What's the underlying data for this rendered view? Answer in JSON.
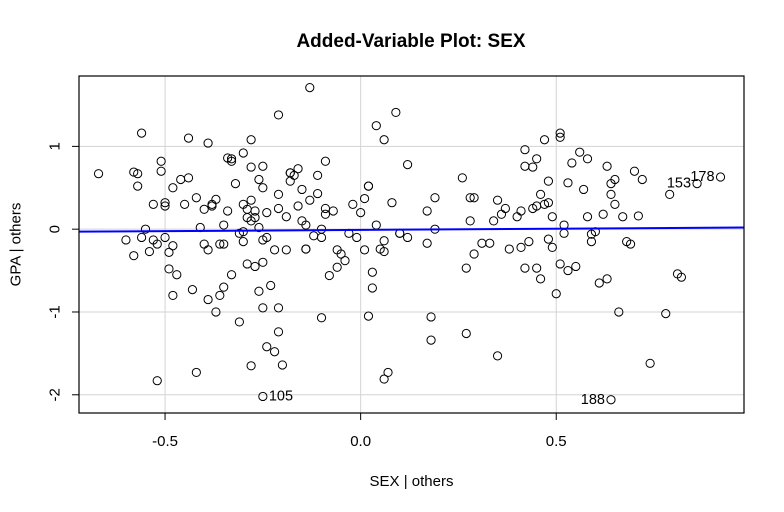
{
  "chart_data": {
    "type": "scatter",
    "title": "Added-Variable Plot: SEX",
    "xlabel": "SEX | others",
    "ylabel": "GPA | others",
    "xlim": [
      -0.72,
      0.98
    ],
    "ylim": [
      -2.22,
      1.85
    ],
    "x_ticks": [
      -0.5,
      0.0,
      0.5
    ],
    "x_tick_labels": [
      "-0.5",
      "0.0",
      "0.5"
    ],
    "y_ticks": [
      -2,
      -1,
      0,
      1
    ],
    "y_tick_labels": [
      "-2",
      "-1",
      "0",
      "1"
    ],
    "grid": true,
    "point_marker": "open-circle",
    "colors": {
      "points": "#000000",
      "fit_line": "#0000ff",
      "grid": "#d3d3d3",
      "frame": "#000000"
    },
    "fit_line": {
      "x": [
        -0.72,
        0.98
      ],
      "y": [
        -0.03,
        0.02
      ]
    },
    "labeled_points": [
      {
        "label": "178",
        "x": 0.92,
        "y": 0.63,
        "side": "left"
      },
      {
        "label": "153",
        "x": 0.86,
        "y": 0.55,
        "side": "left"
      },
      {
        "label": "105",
        "x": -0.25,
        "y": -2.02,
        "side": "right"
      },
      {
        "label": "188",
        "x": 0.64,
        "y": -2.06,
        "side": "left"
      }
    ],
    "points": [
      [
        -0.67,
        0.67
      ],
      [
        -0.6,
        -0.13
      ],
      [
        -0.58,
        0.69
      ],
      [
        -0.58,
        -0.32
      ],
      [
        -0.57,
        0.52
      ],
      [
        -0.57,
        0.67
      ],
      [
        -0.56,
        1.16
      ],
      [
        -0.56,
        -0.1
      ],
      [
        -0.55,
        0.0
      ],
      [
        -0.54,
        -0.27
      ],
      [
        -0.53,
        -0.13
      ],
      [
        -0.53,
        0.3
      ],
      [
        -0.52,
        -0.18
      ],
      [
        -0.52,
        -1.83
      ],
      [
        -0.51,
        0.82
      ],
      [
        -0.51,
        0.7
      ],
      [
        -0.5,
        0.32
      ],
      [
        -0.5,
        0.28
      ],
      [
        -0.5,
        -0.1
      ],
      [
        -0.49,
        -0.28
      ],
      [
        -0.49,
        -0.48
      ],
      [
        -0.48,
        -0.8
      ],
      [
        -0.48,
        0.5
      ],
      [
        -0.48,
        -0.2
      ],
      [
        -0.47,
        -0.55
      ],
      [
        -0.46,
        0.6
      ],
      [
        -0.45,
        0.3
      ],
      [
        -0.44,
        1.1
      ],
      [
        -0.44,
        0.62
      ],
      [
        -0.43,
        -0.73
      ],
      [
        -0.42,
        -1.73
      ],
      [
        -0.42,
        0.38
      ],
      [
        -0.41,
        0.02
      ],
      [
        -0.4,
        0.24
      ],
      [
        -0.4,
        -0.18
      ],
      [
        -0.39,
        -0.25
      ],
      [
        -0.39,
        -0.85
      ],
      [
        -0.39,
        1.04
      ],
      [
        -0.38,
        0.3
      ],
      [
        -0.38,
        0.28
      ],
      [
        -0.37,
        -1.0
      ],
      [
        -0.37,
        0.36
      ],
      [
        -0.36,
        -0.18
      ],
      [
        -0.36,
        -0.8
      ],
      [
        -0.35,
        0.05
      ],
      [
        -0.35,
        -0.18
      ],
      [
        -0.35,
        -0.7
      ],
      [
        -0.34,
        0.86
      ],
      [
        -0.34,
        0.22
      ],
      [
        -0.33,
        0.82
      ],
      [
        -0.33,
        0.85
      ],
      [
        -0.33,
        -0.55
      ],
      [
        -0.32,
        0.55
      ],
      [
        -0.31,
        -0.05
      ],
      [
        -0.31,
        -1.12
      ],
      [
        -0.3,
        -0.03
      ],
      [
        -0.3,
        0.92
      ],
      [
        -0.3,
        0.3
      ],
      [
        -0.3,
        -0.15
      ],
      [
        -0.29,
        0.14
      ],
      [
        -0.29,
        0.24
      ],
      [
        -0.29,
        -0.42
      ],
      [
        -0.28,
        -1.65
      ],
      [
        -0.28,
        0.1
      ],
      [
        -0.28,
        0.35
      ],
      [
        -0.28,
        0.75
      ],
      [
        -0.28,
        1.08
      ],
      [
        -0.27,
        -0.45
      ],
      [
        -0.27,
        0.14
      ],
      [
        -0.27,
        0.22
      ],
      [
        -0.26,
        0.02
      ],
      [
        -0.26,
        0.6
      ],
      [
        -0.26,
        -0.75
      ],
      [
        -0.25,
        -0.95
      ],
      [
        -0.25,
        0.5
      ],
      [
        -0.25,
        -0.13
      ],
      [
        -0.25,
        -0.4
      ],
      [
        -0.25,
        0.76
      ],
      [
        -0.24,
        -1.42
      ],
      [
        -0.24,
        -0.1
      ],
      [
        -0.24,
        0.2
      ],
      [
        -0.23,
        -0.68
      ],
      [
        -0.22,
        -1.48
      ],
      [
        -0.22,
        -0.25
      ],
      [
        -0.21,
        0.42
      ],
      [
        -0.21,
        -0.95
      ],
      [
        -0.21,
        -1.24
      ],
      [
        -0.21,
        1.38
      ],
      [
        -0.21,
        0.25
      ],
      [
        -0.2,
        -1.64
      ],
      [
        -0.19,
        -0.25
      ],
      [
        -0.19,
        0.15
      ],
      [
        -0.18,
        0.68
      ],
      [
        -0.18,
        0.58
      ],
      [
        -0.18,
        0.68
      ],
      [
        -0.17,
        0.65
      ],
      [
        -0.16,
        0.73
      ],
      [
        -0.16,
        0.28
      ],
      [
        -0.15,
        0.48
      ],
      [
        -0.15,
        0.1
      ],
      [
        -0.14,
        -0.24
      ],
      [
        -0.14,
        -0.24
      ],
      [
        -0.14,
        0.05
      ],
      [
        -0.13,
        0.35
      ],
      [
        -0.13,
        1.71
      ],
      [
        -0.12,
        -0.08
      ],
      [
        -0.11,
        0.65
      ],
      [
        -0.11,
        0.43
      ],
      [
        -0.1,
        -1.07
      ],
      [
        -0.1,
        0.0
      ],
      [
        -0.1,
        -0.1
      ],
      [
        -0.09,
        0.18
      ],
      [
        -0.09,
        0.25
      ],
      [
        -0.09,
        0.82
      ],
      [
        -0.08,
        -0.56
      ],
      [
        -0.07,
        0.22
      ],
      [
        -0.06,
        -0.25
      ],
      [
        -0.06,
        -0.46
      ],
      [
        -0.05,
        -0.3
      ],
      [
        -0.04,
        -0.38
      ],
      [
        -0.03,
        -0.05
      ],
      [
        -0.02,
        0.3
      ],
      [
        -0.01,
        -0.1
      ],
      [
        0.0,
        0.2
      ],
      [
        0.01,
        0.37
      ],
      [
        0.01,
        -0.25
      ],
      [
        0.02,
        -1.05
      ],
      [
        0.02,
        0.52
      ],
      [
        0.02,
        0.52
      ],
      [
        0.03,
        -0.52
      ],
      [
        0.03,
        -0.71
      ],
      [
        0.04,
        1.25
      ],
      [
        0.04,
        0.05
      ],
      [
        0.05,
        -0.24
      ],
      [
        0.06,
        -0.14
      ],
      [
        0.06,
        1.08
      ],
      [
        0.06,
        -0.27
      ],
      [
        0.06,
        -1.81
      ],
      [
        0.07,
        -1.73
      ],
      [
        0.08,
        0.32
      ],
      [
        0.09,
        1.41
      ],
      [
        0.1,
        -0.05
      ],
      [
        0.1,
        -0.05
      ],
      [
        0.12,
        -0.1
      ],
      [
        0.12,
        0.78
      ],
      [
        0.17,
        0.22
      ],
      [
        0.17,
        -0.17
      ],
      [
        0.18,
        -1.06
      ],
      [
        0.18,
        -1.34
      ],
      [
        0.19,
        0.38
      ],
      [
        0.19,
        0.0
      ],
      [
        0.26,
        0.62
      ],
      [
        0.27,
        -0.47
      ],
      [
        0.27,
        -1.26
      ],
      [
        0.28,
        0.38
      ],
      [
        0.28,
        0.1
      ],
      [
        0.29,
        0.38
      ],
      [
        0.29,
        -0.3
      ],
      [
        0.31,
        -0.17
      ],
      [
        0.33,
        -0.17
      ],
      [
        0.34,
        0.1
      ],
      [
        0.35,
        0.35
      ],
      [
        0.35,
        -1.53
      ],
      [
        0.36,
        0.18
      ],
      [
        0.37,
        0.25
      ],
      [
        0.38,
        -0.24
      ],
      [
        0.4,
        0.15
      ],
      [
        0.41,
        -0.22
      ],
      [
        0.41,
        0.22
      ],
      [
        0.42,
        0.96
      ],
      [
        0.42,
        0.76
      ],
      [
        0.42,
        -0.47
      ],
      [
        0.43,
        -0.15
      ],
      [
        0.44,
        0.75
      ],
      [
        0.44,
        0.25
      ],
      [
        0.45,
        0.28
      ],
      [
        0.45,
        -0.47
      ],
      [
        0.45,
        0.85
      ],
      [
        0.46,
        0.42
      ],
      [
        0.46,
        -0.6
      ],
      [
        0.47,
        0.3
      ],
      [
        0.47,
        1.08
      ],
      [
        0.48,
        -0.12
      ],
      [
        0.48,
        0.58
      ],
      [
        0.48,
        0.32
      ],
      [
        0.49,
        0.15
      ],
      [
        0.49,
        -0.22
      ],
      [
        0.5,
        -0.78
      ],
      [
        0.51,
        1.16
      ],
      [
        0.51,
        1.11
      ],
      [
        0.51,
        -0.42
      ],
      [
        0.52,
        -0.05
      ],
      [
        0.52,
        0.05
      ],
      [
        0.53,
        -0.5
      ],
      [
        0.53,
        0.56
      ],
      [
        0.54,
        0.8
      ],
      [
        0.55,
        -0.45
      ],
      [
        0.56,
        0.93
      ],
      [
        0.57,
        0.48
      ],
      [
        0.58,
        0.15
      ],
      [
        0.58,
        0.85
      ],
      [
        0.59,
        -0.15
      ],
      [
        0.59,
        -0.06
      ],
      [
        0.6,
        -0.03
      ],
      [
        0.61,
        -0.65
      ],
      [
        0.62,
        0.18
      ],
      [
        0.63,
        -0.6
      ],
      [
        0.63,
        0.76
      ],
      [
        0.64,
        0.55
      ],
      [
        0.64,
        0.42
      ],
      [
        0.65,
        0.3
      ],
      [
        0.65,
        0.6
      ],
      [
        0.66,
        -1.0
      ],
      [
        0.67,
        0.15
      ],
      [
        0.68,
        -0.15
      ],
      [
        0.69,
        -0.18
      ],
      [
        0.7,
        0.7
      ],
      [
        0.71,
        0.16
      ],
      [
        0.72,
        0.6
      ],
      [
        0.74,
        -1.62
      ],
      [
        0.78,
        -1.02
      ],
      [
        0.79,
        0.42
      ],
      [
        0.81,
        -0.54
      ],
      [
        0.82,
        -0.58
      ]
    ]
  }
}
